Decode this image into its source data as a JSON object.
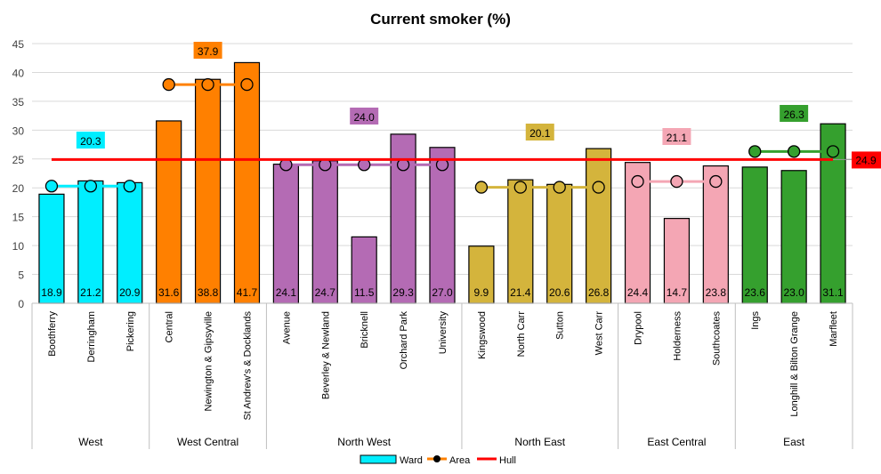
{
  "chart_data": {
    "type": "bar",
    "title": "Current smoker (%)",
    "xlabel": "",
    "ylabel": "",
    "ylim": [
      0,
      45
    ],
    "yticks": [
      0,
      5,
      10,
      15,
      20,
      25,
      30,
      35,
      40,
      45
    ],
    "grid": true,
    "legend_position": "bottom",
    "legend": [
      "Ward",
      "Area",
      "Hull"
    ],
    "hull": {
      "name": "Hull",
      "value": 24.9,
      "label": "24.9",
      "color": "#ff0000"
    },
    "groups": [
      {
        "name": "West",
        "color": "#00eeff",
        "area_value": 20.3,
        "area_label": "20.3",
        "wards": [
          "Boothferry",
          "Derringham",
          "Pickering"
        ],
        "values": [
          18.9,
          21.2,
          20.9
        ]
      },
      {
        "name": "West Central",
        "color": "#ff8000",
        "area_value": 37.9,
        "area_label": "37.9",
        "wards": [
          "Central",
          "Newington & Gipsyville",
          "St Andrew's & Docklands"
        ],
        "values": [
          31.6,
          38.8,
          41.7
        ]
      },
      {
        "name": "North West",
        "color": "#b46bb4",
        "area_value": 24.0,
        "area_label": "24.0",
        "wards": [
          "Avenue",
          "Beverley & Newland",
          "Bricknell",
          "Orchard Park",
          "University"
        ],
        "values": [
          24.1,
          24.7,
          11.5,
          29.3,
          27.0
        ]
      },
      {
        "name": "North East",
        "color": "#d4b43c",
        "area_value": 20.1,
        "area_label": "20.1",
        "wards": [
          "Kingswood",
          "North Carr",
          "Sutton",
          "West Carr"
        ],
        "values": [
          9.9,
          21.4,
          20.6,
          26.8
        ]
      },
      {
        "name": "East Central",
        "color": "#f4a6b4",
        "area_value": 21.1,
        "area_label": "21.1",
        "wards": [
          "Drypool",
          "Holderness",
          "Southcoates"
        ],
        "values": [
          24.4,
          14.7,
          23.8
        ]
      },
      {
        "name": "East",
        "color": "#35a02e",
        "area_value": 26.3,
        "area_label": "26.3",
        "wards": [
          "Ings",
          "Longhill & Bilton Grange",
          "Marfleet"
        ],
        "values": [
          23.6,
          23.0,
          31.1
        ]
      }
    ]
  }
}
